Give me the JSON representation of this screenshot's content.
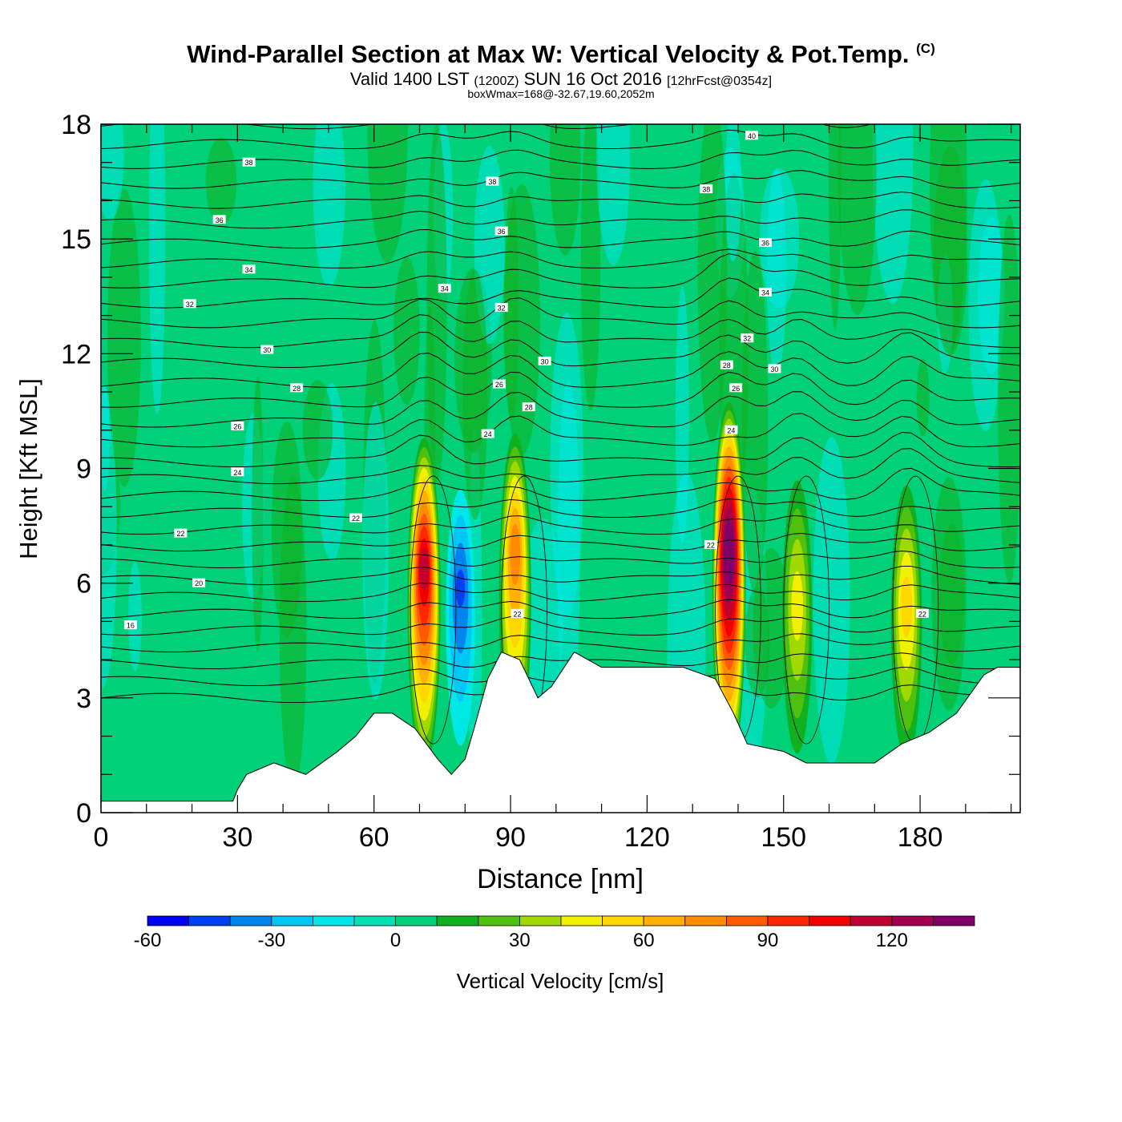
{
  "header": {
    "title": "Wind-Parallel Section at Max W: Vertical Velocity & Pot.Temp.",
    "copyright": "(C)",
    "valid_prefix": "Valid 1400 LST",
    "valid_utc": "(1200Z)",
    "valid_date": "SUN 16 Oct 2016",
    "forecast": "[12hrFcst@0354z]",
    "box_wmax": "boxWmax=168@-32.67,19.60,2052m"
  },
  "chart_data": {
    "type": "heatmap",
    "xlabel": "Distance [nm]",
    "ylabel": "Height [Kft MSL]",
    "xlim": [
      0,
      202
    ],
    "ylim": [
      0,
      18
    ],
    "xticks": [
      0,
      30,
      60,
      90,
      120,
      150,
      180
    ],
    "yticks": [
      0,
      3,
      6,
      9,
      12,
      15,
      18
    ],
    "colorbar": {
      "label": "Vertical Velocity [cm/s]",
      "boundaries": [
        -60,
        -50,
        -40,
        -30,
        -20,
        -10,
        0,
        10,
        20,
        30,
        40,
        50,
        60,
        70,
        80,
        90,
        100,
        110,
        120,
        130,
        140
      ],
      "tick_labels": [
        "-60",
        "-30",
        "0",
        "30",
        "60",
        "90",
        "120"
      ],
      "tick_values": [
        -60,
        -30,
        0,
        30,
        60,
        90,
        120
      ],
      "colors": [
        "#0000f5",
        "#0040f5",
        "#0085f0",
        "#00c8f5",
        "#00e8e6",
        "#00e0b0",
        "#00d078",
        "#10b020",
        "#50c010",
        "#a0d800",
        "#f0f000",
        "#ffd700",
        "#ffb000",
        "#ff8c00",
        "#ff5a00",
        "#ff2800",
        "#f00000",
        "#c00030",
        "#a00050",
        "#800068"
      ]
    },
    "updraft_cores": [
      {
        "distance": 71,
        "top": 10.0,
        "peak_height": 6.5,
        "max_w": 110
      },
      {
        "distance": 91,
        "top": 10.2,
        "peak_height": 7.0,
        "max_w": 75
      },
      {
        "distance": 138,
        "top": 10.9,
        "peak_height": 7.0,
        "max_w": 140
      },
      {
        "distance": 153,
        "top": 9.3,
        "peak_height": 5.5,
        "max_w": 45
      },
      {
        "distance": 177,
        "top": 9.0,
        "peak_height": 5.5,
        "max_w": 55
      }
    ],
    "downdraft_cores": [
      {
        "distance": 79,
        "top": 9.0,
        "peak_height": 6.0,
        "min_w": -40
      }
    ],
    "terrain": [
      [
        0,
        0.3
      ],
      [
        29,
        0.3
      ],
      [
        30,
        0.6
      ],
      [
        32,
        1.0
      ],
      [
        38,
        1.3
      ],
      [
        45,
        1.0
      ],
      [
        52,
        1.6
      ],
      [
        56,
        2.0
      ],
      [
        60,
        2.6
      ],
      [
        64,
        2.6
      ],
      [
        69,
        2.2
      ],
      [
        74,
        1.4
      ],
      [
        77,
        1.0
      ],
      [
        80,
        1.4
      ],
      [
        82,
        2.2
      ],
      [
        85,
        3.5
      ],
      [
        88,
        4.2
      ],
      [
        92,
        4.0
      ],
      [
        96,
        3.0
      ],
      [
        99,
        3.3
      ],
      [
        104,
        4.2
      ],
      [
        110,
        3.8
      ],
      [
        120,
        3.8
      ],
      [
        128,
        3.8
      ],
      [
        135,
        3.5
      ],
      [
        139,
        2.6
      ],
      [
        142,
        1.8
      ],
      [
        150,
        1.6
      ],
      [
        155,
        1.3
      ],
      [
        170,
        1.3
      ],
      [
        176,
        1.8
      ],
      [
        182,
        2.1
      ],
      [
        188,
        2.6
      ],
      [
        194,
        3.6
      ],
      [
        197,
        3.8
      ],
      [
        202,
        3.8
      ]
    ],
    "isentrope_labels": [
      {
        "value": "16",
        "x": 6.5,
        "y": 4.9
      },
      {
        "value": "20",
        "x": 21.5,
        "y": 6.0
      },
      {
        "value": "22",
        "x": 17.5,
        "y": 7.3
      },
      {
        "value": "24",
        "x": 30,
        "y": 8.9
      },
      {
        "value": "26",
        "x": 30,
        "y": 10.1
      },
      {
        "value": "28",
        "x": 43,
        "y": 11.1
      },
      {
        "value": "30",
        "x": 36.5,
        "y": 12.1
      },
      {
        "value": "32",
        "x": 19.5,
        "y": 13.3
      },
      {
        "value": "34",
        "x": 32.5,
        "y": 14.2
      },
      {
        "value": "36",
        "x": 26,
        "y": 15.5
      },
      {
        "value": "38",
        "x": 32.5,
        "y": 17.0
      },
      {
        "value": "22",
        "x": 56,
        "y": 7.7
      },
      {
        "value": "24",
        "x": 85,
        "y": 9.9
      },
      {
        "value": "26",
        "x": 87.5,
        "y": 11.2
      },
      {
        "value": "28",
        "x": 94,
        "y": 10.6
      },
      {
        "value": "30",
        "x": 97.5,
        "y": 11.8
      },
      {
        "value": "32",
        "x": 88,
        "y": 13.2
      },
      {
        "value": "34",
        "x": 75.5,
        "y": 13.7
      },
      {
        "value": "36",
        "x": 88,
        "y": 15.2
      },
      {
        "value": "38",
        "x": 86,
        "y": 16.5
      },
      {
        "value": "40",
        "x": 143,
        "y": 17.7
      },
      {
        "value": "38",
        "x": 133,
        "y": 16.3
      },
      {
        "value": "36",
        "x": 146,
        "y": 14.9
      },
      {
        "value": "34",
        "x": 146,
        "y": 13.6
      },
      {
        "value": "32",
        "x": 142,
        "y": 12.4
      },
      {
        "value": "30",
        "x": 148,
        "y": 11.6
      },
      {
        "value": "28",
        "x": 137.5,
        "y": 11.7
      },
      {
        "value": "26",
        "x": 139.5,
        "y": 11.1
      },
      {
        "value": "24",
        "x": 138.5,
        "y": 10.0
      },
      {
        "value": "22",
        "x": 134,
        "y": 7.0
      },
      {
        "value": "22",
        "x": 91.5,
        "y": 5.2
      },
      {
        "value": "22",
        "x": 180.5,
        "y": 5.2
      }
    ]
  }
}
